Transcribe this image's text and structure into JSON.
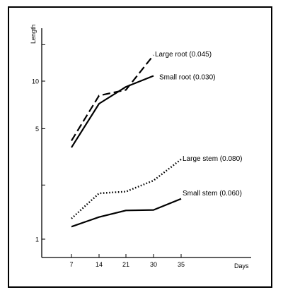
{
  "chart_data": {
    "type": "line",
    "title": "",
    "ylabel": "Length",
    "xlabel": "Days",
    "y_scale": "log",
    "grid": false,
    "legend": "inline labels at line ends",
    "x_ticks": [
      7,
      14,
      21,
      30,
      35
    ],
    "y_tick_labels": [
      {
        "value": 1,
        "label": "1"
      },
      {
        "value": 5,
        "label": "5"
      },
      {
        "value": 10,
        "label": "10"
      }
    ],
    "y_minor_ticks": [
      2.2,
      17
    ],
    "series": [
      {
        "name": "Large root (0.045)",
        "style": "dashed",
        "x": [
          7,
          14,
          21,
          30
        ],
        "y": [
          4.2,
          8.1,
          8.8,
          14.6
        ]
      },
      {
        "name": "Small root (0.030)",
        "style": "solid",
        "x": [
          7,
          14,
          21,
          30
        ],
        "y": [
          3.8,
          7.2,
          9.2,
          10.8
        ]
      },
      {
        "name": "Large stem (0.080)",
        "style": "dotted",
        "x": [
          7,
          14,
          21,
          30,
          35
        ],
        "y": [
          1.35,
          1.95,
          2.0,
          2.35,
          3.2
        ]
      },
      {
        "name": "Small stem (0.060)",
        "style": "solid",
        "x": [
          7,
          14,
          21,
          30,
          35
        ],
        "y": [
          1.2,
          1.38,
          1.52,
          1.53,
          1.8
        ]
      }
    ]
  }
}
